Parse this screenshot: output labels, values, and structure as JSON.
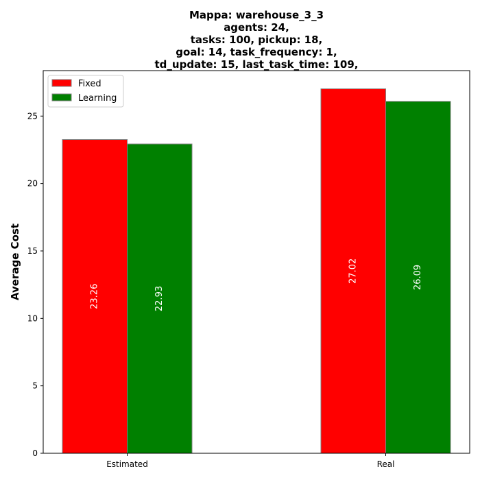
{
  "chart_data": {
    "type": "bar",
    "title_lines": [
      "Mappa: warehouse_3_3",
      "agents: 24,",
      "tasks: 100, pickup: 18,",
      "goal: 14, task_frequency: 1,",
      "td_update: 15, last_task_time: 109,"
    ],
    "xlabel": "",
    "ylabel": "Average Cost",
    "categories": [
      "Estimated",
      "Real"
    ],
    "series": [
      {
        "name": "Fixed",
        "color": "#ff0000",
        "values": [
          23.26,
          27.02
        ],
        "labels": [
          "23.26",
          "27.02"
        ]
      },
      {
        "name": "Learning",
        "color": "#008000",
        "values": [
          22.93,
          26.09
        ],
        "labels": [
          "22.93",
          "26.09"
        ]
      }
    ],
    "ylim": [
      0,
      28.37
    ],
    "yticks": [
      0,
      5,
      10,
      15,
      20,
      25
    ],
    "ytick_labels": [
      "0",
      "5",
      "10",
      "15",
      "20",
      "25"
    ],
    "grid": false,
    "legend_position": "upper-left",
    "bar_edge_color": "#808080"
  }
}
